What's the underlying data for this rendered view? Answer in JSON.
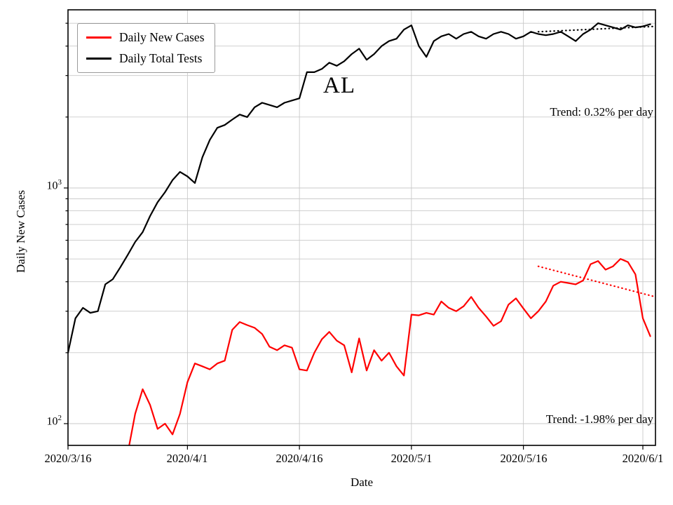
{
  "chart_data": {
    "type": "line",
    "title": "AL",
    "x_axis": {
      "label": "Date",
      "tick_labels": [
        "2020/3/16",
        "2020/4/1",
        "2020/4/16",
        "2020/5/1",
        "2020/5/16",
        "2020/6/1"
      ],
      "tick_days": [
        0,
        16,
        31,
        46,
        61,
        77
      ],
      "note_day0": "2020/3/16",
      "range_days": [
        0,
        78.7
      ]
    },
    "y_axis": {
      "label": "Daily New Cases",
      "scale": "log",
      "range": [
        81,
        5700
      ],
      "tick_values": [
        100,
        1000
      ],
      "tick_labels": [
        {
          "base": "10",
          "exp": "2"
        },
        {
          "base": "10",
          "exp": "3"
        }
      ]
    },
    "grid": {
      "y_major": [
        100,
        1000
      ],
      "y_minor": [
        200,
        300,
        400,
        500,
        600,
        700,
        800,
        900,
        2000,
        3000,
        4000,
        5000
      ]
    },
    "legend_position": "top-left",
    "series": [
      {
        "name": "Daily New Cases",
        "color": "#ff0000",
        "points": [
          [
            8,
            75
          ],
          [
            9,
            110
          ],
          [
            10,
            140
          ],
          [
            11,
            120
          ],
          [
            12,
            95
          ],
          [
            13,
            100
          ],
          [
            14,
            90
          ],
          [
            15,
            110
          ],
          [
            16,
            150
          ],
          [
            17,
            180
          ],
          [
            18,
            175
          ],
          [
            19,
            170
          ],
          [
            20,
            180
          ],
          [
            21,
            185
          ],
          [
            22,
            250
          ],
          [
            23,
            270
          ],
          [
            24,
            262
          ],
          [
            25,
            255
          ],
          [
            26,
            240
          ],
          [
            27,
            212
          ],
          [
            28,
            205
          ],
          [
            29,
            215
          ],
          [
            30,
            210
          ],
          [
            31,
            170
          ],
          [
            32,
            168
          ],
          [
            33,
            200
          ],
          [
            34,
            228
          ],
          [
            35,
            245
          ],
          [
            36,
            225
          ],
          [
            37,
            215
          ],
          [
            38,
            165
          ],
          [
            39,
            230
          ],
          [
            40,
            168
          ],
          [
            41,
            205
          ],
          [
            42,
            185
          ],
          [
            43,
            200
          ],
          [
            44,
            175
          ],
          [
            45,
            160
          ],
          [
            46,
            290
          ],
          [
            47,
            288
          ],
          [
            48,
            295
          ],
          [
            49,
            290
          ],
          [
            50,
            330
          ],
          [
            51,
            310
          ],
          [
            52,
            300
          ],
          [
            53,
            315
          ],
          [
            54,
            345
          ],
          [
            55,
            310
          ],
          [
            56,
            285
          ],
          [
            57,
            260
          ],
          [
            58,
            272
          ],
          [
            59,
            320
          ],
          [
            60,
            340
          ],
          [
            61,
            308
          ],
          [
            62,
            280
          ],
          [
            63,
            300
          ],
          [
            64,
            330
          ],
          [
            65,
            385
          ],
          [
            66,
            400
          ],
          [
            67,
            395
          ],
          [
            68,
            390
          ],
          [
            69,
            405
          ],
          [
            70,
            475
          ],
          [
            71,
            490
          ],
          [
            72,
            450
          ],
          [
            73,
            465
          ],
          [
            74,
            500
          ],
          [
            75,
            485
          ],
          [
            76,
            430
          ],
          [
            77,
            280
          ],
          [
            78,
            235
          ]
        ]
      },
      {
        "name": "Daily Total Tests",
        "color": "#000000",
        "points": [
          [
            0,
            200
          ],
          [
            1,
            280
          ],
          [
            2,
            310
          ],
          [
            3,
            295
          ],
          [
            4,
            300
          ],
          [
            5,
            390
          ],
          [
            6,
            410
          ],
          [
            7,
            460
          ],
          [
            8,
            520
          ],
          [
            9,
            590
          ],
          [
            10,
            650
          ],
          [
            11,
            760
          ],
          [
            12,
            870
          ],
          [
            13,
            960
          ],
          [
            14,
            1080
          ],
          [
            15,
            1170
          ],
          [
            16,
            1120
          ],
          [
            17,
            1050
          ],
          [
            18,
            1350
          ],
          [
            19,
            1600
          ],
          [
            20,
            1800
          ],
          [
            21,
            1850
          ],
          [
            22,
            1950
          ],
          [
            23,
            2050
          ],
          [
            24,
            2000
          ],
          [
            25,
            2200
          ],
          [
            26,
            2300
          ],
          [
            27,
            2250
          ],
          [
            28,
            2200
          ],
          [
            29,
            2300
          ],
          [
            30,
            2350
          ],
          [
            31,
            2400
          ],
          [
            32,
            3100
          ],
          [
            33,
            3100
          ],
          [
            34,
            3200
          ],
          [
            35,
            3400
          ],
          [
            36,
            3300
          ],
          [
            37,
            3450
          ],
          [
            38,
            3700
          ],
          [
            39,
            3900
          ],
          [
            40,
            3500
          ],
          [
            41,
            3700
          ],
          [
            42,
            4000
          ],
          [
            43,
            4200
          ],
          [
            44,
            4300
          ],
          [
            45,
            4700
          ],
          [
            46,
            4900
          ],
          [
            47,
            4000
          ],
          [
            48,
            3600
          ],
          [
            49,
            4200
          ],
          [
            50,
            4400
          ],
          [
            51,
            4500
          ],
          [
            52,
            4300
          ],
          [
            53,
            4500
          ],
          [
            54,
            4600
          ],
          [
            55,
            4400
          ],
          [
            56,
            4300
          ],
          [
            57,
            4500
          ],
          [
            58,
            4600
          ],
          [
            59,
            4500
          ],
          [
            60,
            4300
          ],
          [
            61,
            4400
          ],
          [
            62,
            4600
          ],
          [
            63,
            4500
          ],
          [
            64,
            4450
          ],
          [
            65,
            4500
          ],
          [
            66,
            4600
          ],
          [
            67,
            4400
          ],
          [
            68,
            4200
          ],
          [
            69,
            4500
          ],
          [
            70,
            4700
          ],
          [
            71,
            5000
          ],
          [
            72,
            4900
          ],
          [
            73,
            4800
          ],
          [
            74,
            4700
          ],
          [
            75,
            4900
          ],
          [
            76,
            4800
          ],
          [
            77,
            4850
          ],
          [
            78,
            4950
          ]
        ]
      }
    ],
    "trend_lines": [
      {
        "series": "Daily Total Tests",
        "label": "Trend: 0.32% per day",
        "rate_percent_per_day": 0.32,
        "color": "#000000",
        "style": "dotted",
        "points": [
          [
            63,
            4600
          ],
          [
            78.7,
            4850
          ]
        ]
      },
      {
        "series": "Daily New Cases",
        "label": "Trend: -1.98% per day",
        "rate_percent_per_day": -1.98,
        "color": "#ff0000",
        "style": "dotted",
        "points": [
          [
            63,
            465
          ],
          [
            78.7,
            345
          ]
        ]
      }
    ]
  }
}
